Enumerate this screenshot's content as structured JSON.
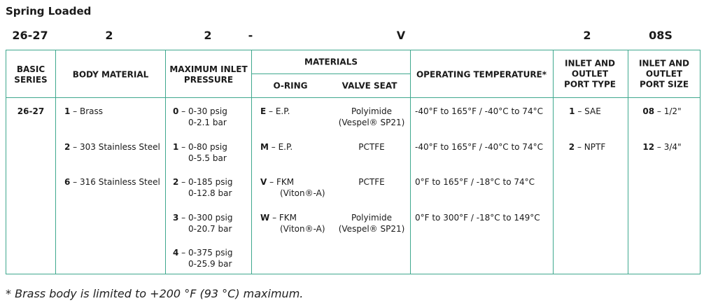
{
  "title": "Spring Loaded",
  "model_code": {
    "basic_series": "26-27",
    "body_material": "2",
    "max_inlet_pressure": "2",
    "separator": "-",
    "materials": "V",
    "port_type": "2",
    "port_size": "08S"
  },
  "headers": {
    "basic_series": [
      "BASIC",
      "SERIES"
    ],
    "body_material": "BODY MATERIAL",
    "max_inlet_pressure": [
      "MAXIMUM INLET",
      "PRESSURE"
    ],
    "materials": "MATERIALS",
    "o_ring": "O-RING",
    "valve_seat": "VALVE SEAT",
    "operating_temperature": "OPERATING TEMPERATURE*",
    "port_type": [
      "INLET AND",
      "OUTLET",
      "PORT TYPE"
    ],
    "port_size": [
      "INLET AND",
      "OUTLET",
      "PORT SIZE"
    ]
  },
  "basic_series": "26-27",
  "body_materials": [
    {
      "code": "1",
      "sep": " – ",
      "label": "Brass"
    },
    {
      "code": "2",
      "sep": " – ",
      "label": "303 Stainless Steel"
    },
    {
      "code": "6",
      "sep": " – ",
      "label": "316 Stainless Steel"
    }
  ],
  "pressures": [
    {
      "code": "0",
      "sep": " – ",
      "psig": "0-30 psig",
      "bar": "0-2.1 bar"
    },
    {
      "code": "1",
      "sep": " – ",
      "psig": "0-80 psig",
      "bar": "0-5.5 bar"
    },
    {
      "code": "2",
      "sep": " – ",
      "psig": "0-185 psig",
      "bar": "0-12.8 bar"
    },
    {
      "code": "3",
      "sep": " – ",
      "psig": "0-300 psig",
      "bar": "0-20.7 bar"
    },
    {
      "code": "4",
      "sep": " – ",
      "psig": "0-375 psig",
      "bar": "0-25.9 bar"
    }
  ],
  "materials": [
    {
      "code": "E",
      "sep": " – ",
      "oring": "E.P.",
      "oring2": "",
      "seat": "Polyimide",
      "seat2": "(Vespel® SP21)",
      "temp": "-40°F to 165°F / -40°C to 74°C"
    },
    {
      "code": "M",
      "sep": " – ",
      "oring": "E.P.",
      "oring2": "",
      "seat": "PCTFE",
      "seat2": "",
      "temp": "-40°F to 165°F / -40°C to 74°C"
    },
    {
      "code": "V",
      "sep": " – ",
      "oring": "FKM",
      "oring2": "(Viton®-A)",
      "seat": "PCTFE",
      "seat2": "",
      "temp": "0°F to 165°F / -18°C to 74°C"
    },
    {
      "code": "W",
      "sep": " – ",
      "oring": "FKM",
      "oring2": "(Viton®-A)",
      "seat": "Polyimide",
      "seat2": "(Vespel® SP21)",
      "temp": "0°F to 300°F / -18°C to 149°C"
    }
  ],
  "port_types": [
    {
      "code": "1",
      "sep": " – ",
      "label": "SAE"
    },
    {
      "code": "2",
      "sep": " – ",
      "label": "NPTF"
    }
  ],
  "port_sizes": [
    {
      "code": "08",
      "sep": " – ",
      "label": "1/2\""
    },
    {
      "code": "12",
      "sep": " – ",
      "label": "3/4\""
    }
  ],
  "footnote": "* Brass body is limited to +200 °F (93 °C) maximum."
}
